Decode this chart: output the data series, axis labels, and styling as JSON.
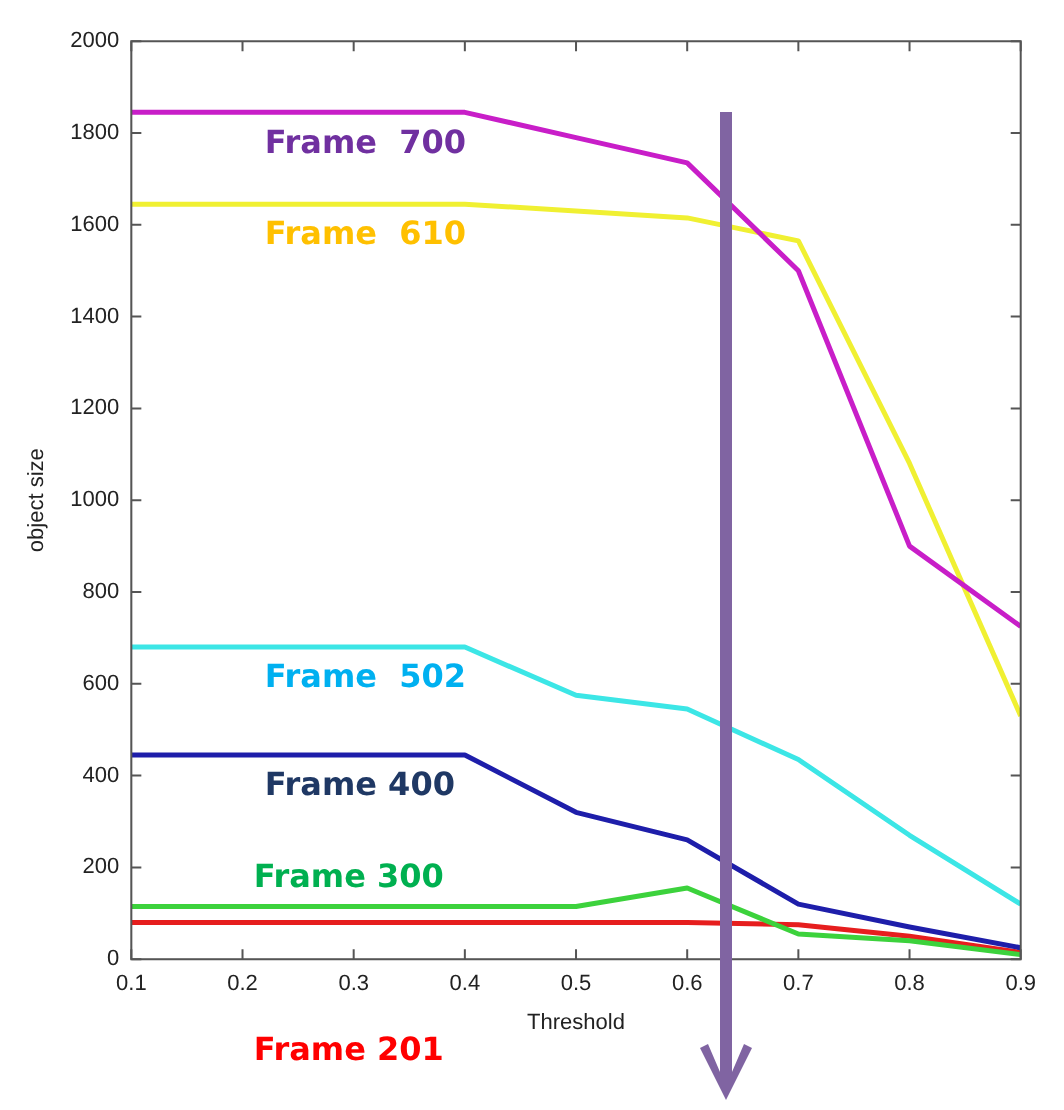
{
  "chart_data": {
    "type": "line",
    "xlabel": "Threshold",
    "ylabel": "object size",
    "x": [
      0.1,
      0.2,
      0.3,
      0.4,
      0.5,
      0.6,
      0.7,
      0.8,
      0.9
    ],
    "xlim": [
      0.1,
      0.9
    ],
    "xticks": [
      0.1,
      0.2,
      0.3,
      0.4,
      0.5,
      0.6,
      0.7,
      0.8,
      0.9
    ],
    "ylim": [
      0,
      2000
    ],
    "yticks": [
      0,
      200,
      400,
      600,
      800,
      1000,
      1200,
      1400,
      1600,
      1800,
      2000
    ],
    "grid": false,
    "legend": false,
    "marker": "none",
    "line_style": "solid",
    "series": [
      {
        "name": "Frame  700",
        "color": "#c81ec8",
        "values": [
          1845,
          1845,
          1845,
          1845,
          1790,
          1735,
          1500,
          900,
          725
        ]
      },
      {
        "name": "Frame  610",
        "color": "#f0f032",
        "values": [
          1645,
          1645,
          1645,
          1645,
          1630,
          1615,
          1565,
          1080,
          530
        ]
      },
      {
        "name": "Frame  502",
        "color": "#3ce6e6",
        "values": [
          680,
          680,
          680,
          680,
          575,
          545,
          435,
          270,
          120
        ]
      },
      {
        "name": "Frame 400",
        "color": "#1e1eaa",
        "values": [
          445,
          445,
          445,
          445,
          320,
          260,
          120,
          70,
          25
        ]
      },
      {
        "name": "Frame 300",
        "color": "#3cd23c",
        "values": [
          115,
          115,
          115,
          115,
          115,
          155,
          55,
          40,
          10
        ]
      },
      {
        "name": "Frame 201",
        "color": "#e61e1e",
        "values": [
          80,
          80,
          80,
          80,
          80,
          80,
          75,
          50,
          15
        ]
      }
    ]
  }
}
